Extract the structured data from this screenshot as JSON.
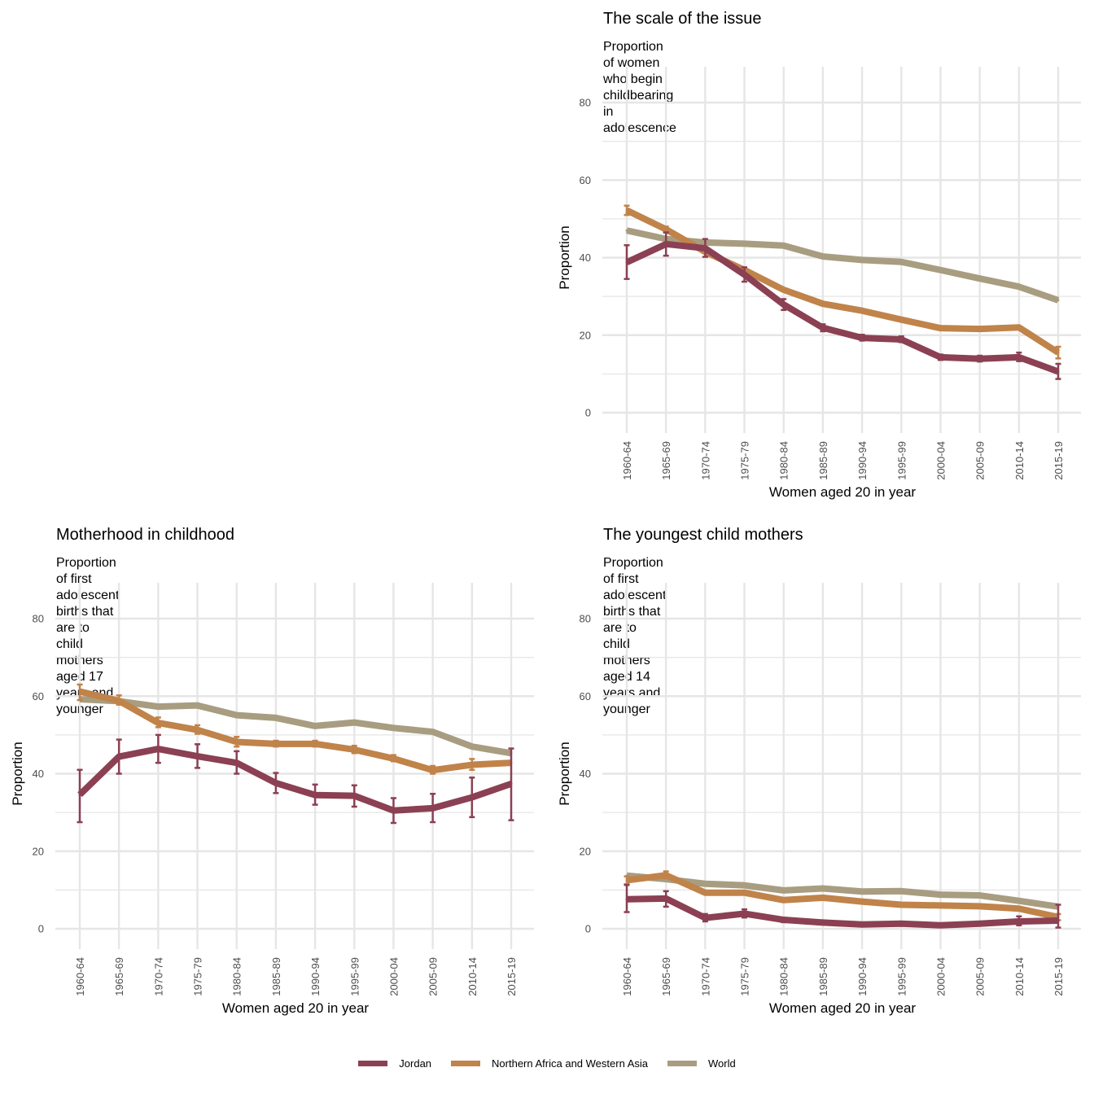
{
  "colors": {
    "Jordan": "#8b4053",
    "Northern Africa and Western Asia": "#c0834a",
    "World": "#a89d80",
    "grid": "#e6e6e6",
    "tick_text": "#4d4d4d"
  },
  "legend": {
    "items": [
      {
        "label": "Jordan",
        "color": "#8b4053"
      },
      {
        "label": "Northern Africa and Western Asia",
        "color": "#c0834a"
      },
      {
        "label": "World",
        "color": "#a89d80"
      }
    ],
    "position": "bottom"
  },
  "chart_data": [
    {
      "id": "scale",
      "type": "line",
      "title": "The scale of the issue",
      "subtitle": "Proportion of women who begin childbearing in adolescence",
      "xlabel": "Women aged 20 in year",
      "ylabel": "Proportion",
      "ylim": [
        0,
        80
      ],
      "yticks": [
        0,
        20,
        40,
        60,
        80
      ],
      "grid": true,
      "categories": [
        "1960-64",
        "1965-69",
        "1970-74",
        "1975-79",
        "1980-84",
        "1985-89",
        "1990-94",
        "1995-99",
        "2000-04",
        "2005-09",
        "2010-14",
        "2015-19"
      ],
      "series": [
        {
          "name": "World",
          "values": [
            47.0,
            44.8,
            43.9,
            43.6,
            43.1,
            40.3,
            39.4,
            38.9,
            36.8,
            34.6,
            32.5,
            29.0
          ]
        },
        {
          "name": "Northern Africa and Western Asia",
          "values": [
            52.2,
            47.3,
            41.5,
            36.8,
            31.7,
            28.1,
            26.3,
            24.0,
            21.8,
            21.6,
            22.0,
            15.5
          ],
          "errors": [
            [
              51.0,
              53.4
            ],
            [
              46.5,
              48.0
            ],
            null,
            null,
            null,
            null,
            null,
            null,
            null,
            null,
            null,
            [
              14.0,
              17.0
            ]
          ]
        },
        {
          "name": "Jordan",
          "values": [
            38.8,
            43.5,
            42.4,
            35.6,
            27.9,
            21.9,
            19.3,
            18.9,
            14.3,
            13.9,
            14.3,
            10.6
          ],
          "errors": [
            [
              34.5,
              43.2
            ],
            [
              40.5,
              46.5
            ],
            [
              40.2,
              44.8
            ],
            [
              33.8,
              37.5
            ],
            [
              26.5,
              29.3
            ],
            [
              21.0,
              22.8
            ],
            [
              18.6,
              20.1
            ],
            [
              18.2,
              19.7
            ],
            [
              13.6,
              15.0
            ],
            [
              13.2,
              14.7
            ],
            [
              13.3,
              15.5
            ],
            [
              8.7,
              12.6
            ]
          ]
        }
      ]
    },
    {
      "id": "motherhood",
      "type": "line",
      "title": "Motherhood in childhood",
      "subtitle": "Proportion of first adolescent births that are to child mothers\naged 17 years and younger",
      "xlabel": "Women aged 20 in year",
      "ylabel": "Proportion",
      "ylim": [
        0,
        80
      ],
      "yticks": [
        0,
        20,
        40,
        60,
        80
      ],
      "grid": true,
      "categories": [
        "1960-64",
        "1965-69",
        "1970-74",
        "1975-79",
        "1980-84",
        "1985-89",
        "1990-94",
        "1995-99",
        "2000-04",
        "2005-09",
        "2010-14",
        "2015-19"
      ],
      "series": [
        {
          "name": "World",
          "values": [
            59.2,
            58.7,
            57.3,
            57.6,
            55.1,
            54.4,
            52.3,
            53.2,
            51.8,
            50.8,
            47.0,
            45.3
          ]
        },
        {
          "name": "Northern Africa and Western Asia",
          "values": [
            61.2,
            58.8,
            53.1,
            51.3,
            48.2,
            47.7,
            47.7,
            46.2,
            43.9,
            40.9,
            42.3,
            42.8
          ],
          "errors": [
            [
              59.0,
              63.0
            ],
            [
              57.8,
              60.2
            ],
            [
              52.0,
              54.5
            ],
            [
              50.3,
              52.5
            ],
            [
              47.0,
              49.5
            ],
            [
              47.0,
              48.5
            ],
            [
              47.0,
              48.5
            ],
            [
              45.3,
              47.2
            ],
            [
              43.2,
              44.8
            ],
            [
              40.0,
              42.0
            ],
            [
              41.0,
              43.8
            ],
            null
          ]
        },
        {
          "name": "Jordan",
          "values": [
            34.6,
            44.4,
            46.4,
            44.5,
            42.8,
            37.6,
            34.5,
            34.3,
            30.5,
            31.1,
            33.9,
            37.4
          ],
          "errors": [
            [
              27.5,
              41.0
            ],
            [
              40.0,
              48.8
            ],
            [
              42.8,
              50.0
            ],
            [
              41.5,
              47.6
            ],
            [
              40.0,
              45.8
            ],
            [
              35.0,
              40.2
            ],
            [
              32.0,
              37.2
            ],
            [
              31.5,
              37.0
            ],
            [
              27.3,
              33.7
            ],
            [
              27.5,
              34.8
            ],
            [
              28.8,
              39.0
            ],
            [
              28.0,
              46.5
            ]
          ]
        }
      ]
    },
    {
      "id": "youngest",
      "type": "line",
      "title": "The youngest child mothers",
      "subtitle": "Proportion of first adolescent births that are to child mothers\naged 14 years and younger",
      "xlabel": "Women aged 20 in year",
      "ylabel": "Proportion",
      "ylim": [
        0,
        80
      ],
      "yticks": [
        0,
        20,
        40,
        60,
        80
      ],
      "grid": true,
      "categories": [
        "1960-64",
        "1965-69",
        "1970-74",
        "1975-79",
        "1980-84",
        "1985-89",
        "1990-94",
        "1995-99",
        "2000-04",
        "2005-09",
        "2010-14",
        "2015-19"
      ],
      "series": [
        {
          "name": "World",
          "values": [
            13.7,
            12.8,
            11.6,
            11.2,
            9.9,
            10.4,
            9.6,
            9.7,
            8.8,
            8.6,
            7.2,
            5.7
          ]
        },
        {
          "name": "Northern Africa and Western Asia",
          "values": [
            12.5,
            13.8,
            9.3,
            9.3,
            7.4,
            8.0,
            7.0,
            6.2,
            6.0,
            5.8,
            5.2,
            3.0
          ],
          "errors": [
            [
              11.5,
              13.5
            ],
            [
              13.0,
              14.8
            ],
            null,
            null,
            null,
            null,
            null,
            null,
            null,
            null,
            null,
            [
              2.2,
              3.8
            ]
          ]
        },
        {
          "name": "Jordan",
          "values": [
            7.6,
            7.8,
            2.8,
            3.9,
            2.3,
            1.6,
            1.1,
            1.3,
            0.9,
            1.3,
            1.9,
            2.1
          ],
          "errors": [
            [
              4.3,
              11.3
            ],
            [
              5.7,
              9.7
            ],
            [
              1.9,
              3.8
            ],
            [
              2.9,
              5.0
            ],
            [
              1.7,
              2.8
            ],
            [
              1.1,
              2.1
            ],
            [
              0.7,
              1.5
            ],
            [
              0.9,
              1.7
            ],
            [
              0.6,
              1.3
            ],
            [
              0.9,
              1.8
            ],
            [
              0.9,
              3.2
            ],
            [
              0.3,
              6.2
            ]
          ]
        }
      ]
    }
  ]
}
